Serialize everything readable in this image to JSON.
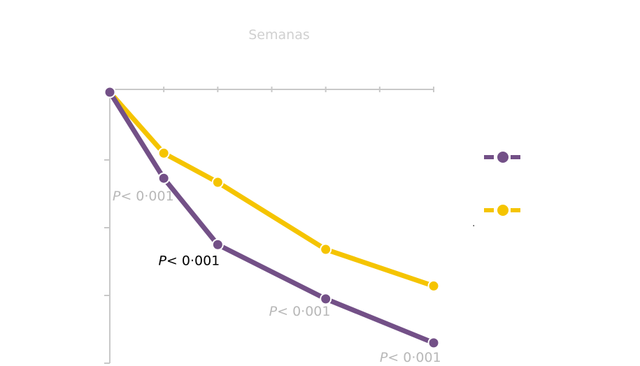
{
  "chart_data": {
    "type": "line",
    "xlabel": "Semanas",
    "ylabel": "",
    "x": [
      0,
      1,
      2,
      3,
      4,
      5,
      6
    ],
    "xlim": [
      0,
      6
    ],
    "ylim": [
      0,
      -4
    ],
    "xaxis_position": "top",
    "grid": false,
    "legend": "right",
    "series": [
      {
        "name": "",
        "color": "#735087",
        "x": [
          0,
          1,
          2,
          4,
          6
        ],
        "y": [
          0,
          -1.27,
          -2.25,
          -3.05,
          -3.7
        ]
      },
      {
        "name": "",
        "color": "#f5c400",
        "x": [
          0,
          1,
          2,
          4,
          6
        ],
        "y": [
          0,
          -0.9,
          -1.33,
          -2.32,
          -2.86
        ]
      }
    ],
    "annotations": [
      {
        "text_prefix": "P",
        "text_rest": "< 0·001",
        "x": 0.05,
        "y": -1.6,
        "color": "#b8b8b8"
      },
      {
        "text_prefix": "P",
        "text_rest": "< 0·001",
        "x": 0.9,
        "y": -2.55,
        "color": "#000000"
      },
      {
        "text_prefix": "P",
        "text_rest": "< 0·001",
        "x": 2.95,
        "y": -3.3,
        "color": "#b8b8b8"
      },
      {
        "text_prefix": "P",
        "text_rest": "< 0·001",
        "x": 5.0,
        "y": -3.98,
        "color": "#b8b8b8"
      }
    ],
    "colors": {
      "axis": "#c8c8c8",
      "purple": "#735087",
      "yellow": "#f5c400"
    }
  },
  "stray_mark": "."
}
